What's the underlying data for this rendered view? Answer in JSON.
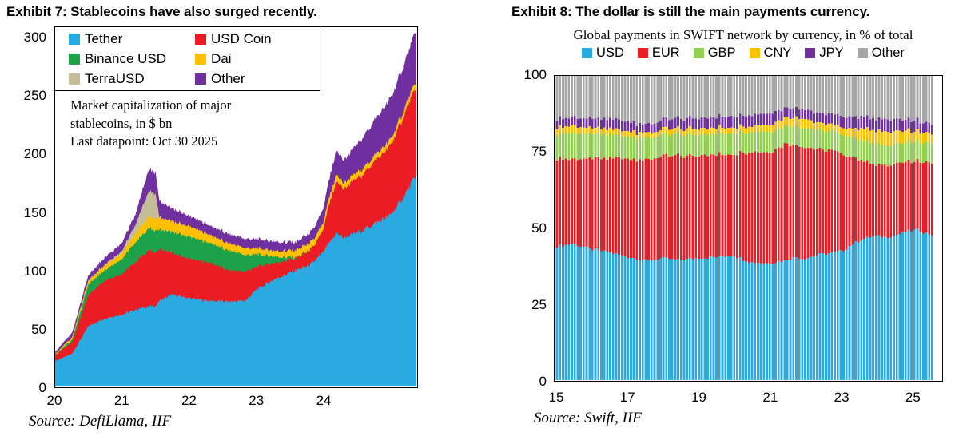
{
  "page": {
    "background": "#FFFFFF"
  },
  "exhibit7": {
    "title": "Exhibit 7: Stablecoins have also surged recently.",
    "annotation": [
      "Market capitalization of major",
      "stablecoins, in $ bn",
      "Last datapoint: Oct 30 2025"
    ],
    "source": "Source: DefiLlama, IIF"
  },
  "exhibit8": {
    "title": "Exhibit 8: The dollar is still the main payments currency.",
    "subtitle": "Global payments in SWIFT network by currency, in % of total",
    "source": "Source: Swift, IIF"
  },
  "chart_data": [
    {
      "type": "area",
      "stacked": true,
      "title": "Exhibit 7: Stablecoins have also surged recently.",
      "note": "Market capitalization of major stablecoins, in $ bn",
      "last_datapoint": "Oct 30 2025",
      "ylabel": "$ bn",
      "xlim": [
        2020,
        2025.4
      ],
      "ylim": [
        0,
        310
      ],
      "y_ticks": [
        300,
        250,
        200,
        150,
        100,
        50,
        0
      ],
      "x_ticks": [
        "20",
        "21",
        "22",
        "23",
        "24"
      ],
      "x_tick_years": [
        2020,
        2021,
        2022,
        2023,
        2024
      ],
      "legend_position": "top-left-boxed",
      "t": [
        2020.0,
        2020.25,
        2020.5,
        2020.75,
        2021.0,
        2021.2,
        2021.4,
        2021.5,
        2021.56,
        2021.75,
        2022.0,
        2022.3,
        2022.6,
        2022.85,
        2023.0,
        2023.3,
        2023.6,
        2023.85,
        2024.0,
        2024.1,
        2024.2,
        2024.32,
        2024.45,
        2024.6,
        2024.8,
        2025.0,
        2025.15,
        2025.3,
        2025.4
      ],
      "series": [
        {
          "name": "Tether",
          "color": "#29ABE2",
          "values": [
            22,
            28,
            52,
            59,
            62,
            66,
            69,
            69,
            74,
            79,
            76,
            74,
            73,
            74,
            83,
            93,
            100,
            106,
            115,
            124,
            132,
            128,
            131,
            135,
            141,
            147,
            158,
            172,
            182
          ]
        },
        {
          "name": "USD Coin",
          "color": "#EC1C24",
          "values": [
            5,
            10,
            27,
            33,
            35,
            41,
            48,
            46,
            45,
            36,
            34,
            33,
            27,
            25,
            20,
            14,
            10,
            13,
            18,
            33,
            44,
            42,
            45,
            48,
            54,
            59,
            66,
            73,
            76
          ]
        },
        {
          "name": "Binance USD",
          "color": "#1CA24B",
          "values": [
            0.4,
            2,
            9,
            9,
            13,
            17,
            19,
            19,
            17,
            18,
            19,
            17,
            17,
            14,
            11,
            5,
            1,
            0,
            0,
            0,
            0,
            0,
            0,
            0,
            0,
            0,
            0,
            0,
            0
          ]
        },
        {
          "name": "Dai",
          "color": "#FFC000",
          "values": [
            0.7,
            2,
            3,
            4,
            5,
            7,
            10,
            10,
            10,
            9,
            9,
            7,
            6,
            6,
            5,
            5,
            6,
            6,
            6,
            6,
            6,
            5,
            5,
            5,
            5,
            5,
            5,
            5,
            5
          ]
        },
        {
          "name": "TerraUSD",
          "color": "#C5BD97",
          "values": [
            0,
            0.3,
            0.5,
            1,
            2,
            8,
            22,
            22,
            0.3,
            0,
            0,
            0,
            0,
            0,
            0,
            0,
            0,
            0,
            0,
            0,
            0,
            0,
            0,
            0,
            0,
            0,
            0,
            0,
            0
          ]
        },
        {
          "name": "Other",
          "color": "#7030A0",
          "values": [
            1.9,
            3.7,
            4.5,
            6,
            7,
            9,
            19,
            18,
            14,
            11,
            9,
            8,
            8,
            8,
            8,
            8,
            7,
            9,
            12,
            16,
            21,
            20,
            23,
            27,
            31,
            35,
            38,
            41,
            46
          ]
        }
      ]
    },
    {
      "type": "bar",
      "stacked": true,
      "bar_interval": "monthly",
      "title": "Exhibit 8: The dollar is still the main payments currency.",
      "subtitle": "Global payments in SWIFT network by currency, in % of total",
      "ylabel": "% of total",
      "xlim": [
        2015,
        2025.67
      ],
      "ylim": [
        0,
        100
      ],
      "y_ticks": [
        100,
        75,
        50,
        25,
        0
      ],
      "x_ticks": [
        "15",
        "17",
        "19",
        "21",
        "23",
        "25"
      ],
      "x_tick_years": [
        2015,
        2017,
        2019,
        2021,
        2023,
        2025
      ],
      "legend_position": "top-centered",
      "t": [
        2015.0,
        2015.5,
        2016.0,
        2016.5,
        2017.0,
        2017.6,
        2018.0,
        2018.5,
        2019.0,
        2019.5,
        2020.0,
        2020.5,
        2021.0,
        2021.5,
        2021.8,
        2022.0,
        2022.4,
        2022.8,
        2023.1,
        2023.4,
        2023.7,
        2024.0,
        2024.3,
        2024.6,
        2024.9,
        2025.2,
        2025.6
      ],
      "series": [
        {
          "name": "USD",
          "color": "#29ABE2",
          "values": [
            44.0,
            44.8,
            43.0,
            42.0,
            40.6,
            39.2,
            40.0,
            39.4,
            40.2,
            40.4,
            41.0,
            38.8,
            38.4,
            39.5,
            40.5,
            39.9,
            41.2,
            41.8,
            42.5,
            45.0,
            46.5,
            47.3,
            47.0,
            47.6,
            48.8,
            49.4,
            47.8
          ]
        },
        {
          "name": "EUR",
          "color": "#EC1C24",
          "values": [
            29.0,
            27.8,
            29.8,
            30.8,
            32.2,
            33.2,
            33.6,
            34.2,
            33.6,
            33.8,
            33.3,
            36.2,
            36.6,
            38.2,
            37.0,
            36.6,
            34.8,
            33.5,
            31.5,
            28.5,
            25.5,
            23.2,
            23.6,
            23.3,
            22.8,
            22.4,
            23.6
          ]
        },
        {
          "name": "GBP",
          "color": "#92D050",
          "values": [
            8.2,
            8.6,
            8.0,
            7.8,
            7.4,
            7.2,
            7.1,
            7.2,
            7.0,
            6.9,
            6.9,
            6.7,
            6.7,
            5.9,
            6.2,
            6.3,
            6.3,
            6.4,
            6.5,
            6.6,
            6.7,
            6.8,
            6.6,
            6.6,
            6.5,
            6.5,
            6.5
          ]
        },
        {
          "name": "CNY",
          "color": "#FFC000",
          "values": [
            2.2,
            2.3,
            2.0,
            1.9,
            1.8,
            1.6,
            1.7,
            1.9,
            1.9,
            1.9,
            1.9,
            1.8,
            2.4,
            2.6,
            2.9,
            3.2,
            2.3,
            2.2,
            2.3,
            3.0,
            3.8,
            4.4,
            4.6,
            4.3,
            3.8,
            3.3,
            3.0
          ]
        },
        {
          "name": "JPY",
          "color": "#7030A0",
          "values": [
            2.7,
            2.8,
            3.1,
            3.2,
            3.1,
            2.8,
            3.0,
            3.3,
            3.4,
            3.5,
            3.6,
            3.6,
            3.6,
            3.2,
            3.2,
            3.0,
            3.1,
            3.4,
            3.6,
            3.8,
            3.9,
            3.8,
            4.0,
            3.9,
            3.5,
            3.4,
            3.4
          ]
        },
        {
          "name": "Other",
          "color": "#A6A6A6",
          "values": [
            13.9,
            13.7,
            14.1,
            14.3,
            14.9,
            16.0,
            14.6,
            14.0,
            13.9,
            13.5,
            13.3,
            12.9,
            12.3,
            10.6,
            10.2,
            11.0,
            12.3,
            12.7,
            13.6,
            13.1,
            13.6,
            14.5,
            14.2,
            14.3,
            14.6,
            15.0,
            15.7
          ]
        }
      ]
    }
  ]
}
